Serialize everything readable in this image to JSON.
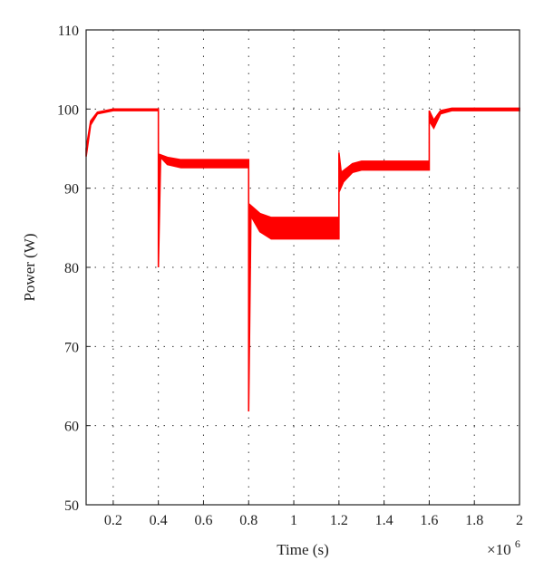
{
  "chart_data": {
    "type": "line",
    "title": "",
    "xlabel": "Time (s)",
    "ylabel": "Power (W)",
    "x_multiplier": "×10",
    "x_multiplier_exp": "6",
    "xlim": [
      0.08,
      2.0
    ],
    "ylim": [
      50,
      110
    ],
    "x_ticks": [
      0.2,
      0.4,
      0.6,
      0.8,
      1.0,
      1.2,
      1.4,
      1.6,
      1.8,
      2.0
    ],
    "x_tick_labels": [
      "0.2",
      "0.4",
      "0.6",
      "0.8",
      "1",
      "1.2",
      "1.4",
      "1.6",
      "1.8",
      "2"
    ],
    "y_ticks": [
      50,
      60,
      70,
      80,
      90,
      100,
      110
    ],
    "y_tick_labels": [
      "50",
      "60",
      "70",
      "80",
      "90",
      "100",
      "110"
    ],
    "grid": true,
    "series": [
      {
        "color": "#ff0000",
        "upper": [
          [
            0.08,
            95.0
          ],
          [
            0.1,
            98.5
          ],
          [
            0.13,
            99.6
          ],
          [
            0.2,
            100.0
          ],
          [
            0.4,
            100.0
          ],
          [
            0.4,
            80.0
          ],
          [
            0.402,
            94.3
          ],
          [
            0.44,
            93.9
          ],
          [
            0.5,
            93.6
          ],
          [
            0.8,
            93.6
          ],
          [
            0.8,
            61.8
          ],
          [
            0.802,
            88.0
          ],
          [
            0.85,
            86.8
          ],
          [
            0.9,
            86.3
          ],
          [
            1.2,
            86.3
          ],
          [
            1.2,
            94.5
          ],
          [
            1.21,
            92.0
          ],
          [
            1.26,
            93.1
          ],
          [
            1.3,
            93.4
          ],
          [
            1.6,
            93.4
          ],
          [
            1.6,
            99.8
          ],
          [
            1.62,
            98.6
          ],
          [
            1.65,
            99.8
          ],
          [
            1.7,
            100.1
          ],
          [
            2.0,
            100.1
          ]
        ],
        "lower": [
          [
            0.08,
            94.0
          ],
          [
            0.1,
            98.0
          ],
          [
            0.13,
            99.4
          ],
          [
            0.2,
            99.8
          ],
          [
            0.4,
            99.8
          ],
          [
            0.4,
            80.0
          ],
          [
            0.41,
            93.9
          ],
          [
            0.44,
            93.0
          ],
          [
            0.5,
            92.6
          ],
          [
            0.8,
            92.6
          ],
          [
            0.8,
            61.8
          ],
          [
            0.81,
            86.5
          ],
          [
            0.85,
            84.5
          ],
          [
            0.9,
            83.6
          ],
          [
            1.2,
            83.6
          ],
          [
            1.2,
            89.5
          ],
          [
            1.22,
            90.8
          ],
          [
            1.26,
            92.0
          ],
          [
            1.3,
            92.3
          ],
          [
            1.6,
            92.3
          ],
          [
            1.6,
            98.5
          ],
          [
            1.62,
            97.6
          ],
          [
            1.65,
            99.4
          ],
          [
            1.7,
            99.8
          ],
          [
            2.0,
            99.8
          ]
        ]
      }
    ]
  }
}
